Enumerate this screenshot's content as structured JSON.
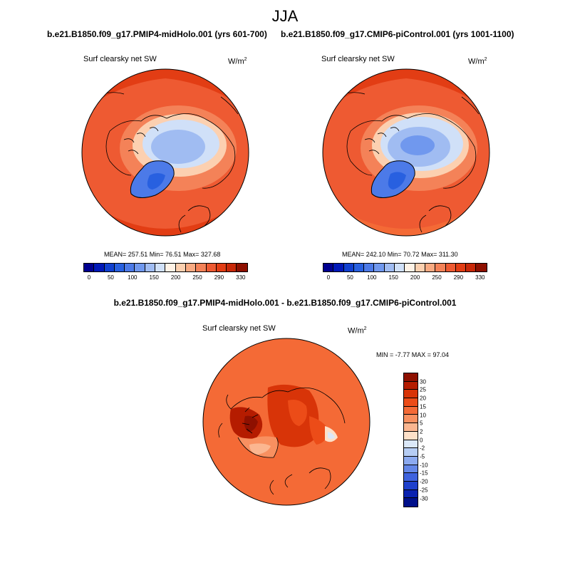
{
  "figure": {
    "season": "JJA",
    "left_title": "b.e21.B1850.f09_g17.PMIP4-midHolo.001 (yrs 601-700)",
    "right_title": "b.e21.B1850.f09_g17.CMIP6-piControl.001 (yrs 1001-1100)",
    "diff_title": "b.e21.B1850.f09_g17.PMIP4-midHolo.001 - b.e21.B1850.f09_g17.CMIP6-piControl.001"
  },
  "panels": {
    "left": {
      "variable": "Surf clearsky net SW",
      "units": "W/m",
      "units_sup": "2",
      "stats": "MEAN= 257.51  Min=  76.51  Max= 327.68"
    },
    "right": {
      "variable": "Surf clearsky net SW",
      "units": "W/m",
      "units_sup": "2",
      "stats": "MEAN= 242.10  Min=  70.72  Max= 311.30"
    },
    "diff": {
      "variable": "Surf clearsky net SW",
      "units": "W/m",
      "units_sup": "2",
      "stats": "MIN =  -7.77 MAX =  97.04"
    }
  },
  "colorbars": {
    "absolute": {
      "colors": [
        "#000090",
        "#0018b8",
        "#1040d0",
        "#2860e0",
        "#4c7ae8",
        "#7098ee",
        "#a0bcf2",
        "#d0e0f8",
        "#fff2e6",
        "#fcd0b0",
        "#f9aa82",
        "#f48258",
        "#ee5a32",
        "#e23d14",
        "#c82808",
        "#8e1000"
      ],
      "tick_labels": [
        "0",
        "50",
        "100",
        "150",
        "200",
        "250",
        "290",
        "330"
      ]
    },
    "difference": {
      "colors": [
        "#8e1000",
        "#b51c00",
        "#d83408",
        "#ec4c18",
        "#f46a36",
        "#f89060",
        "#fbb690",
        "#fde0c8",
        "#dbe8f8",
        "#b6cdf4",
        "#8caaf0",
        "#6487e8",
        "#3e62de",
        "#1e40cc",
        "#0a22b0",
        "#00108a"
      ],
      "labels": [
        "30",
        "25",
        "20",
        "15",
        "10",
        "5",
        "2",
        "0",
        "-2",
        "-5",
        "-10",
        "-15",
        "-20",
        "-25",
        "-30"
      ]
    }
  }
}
